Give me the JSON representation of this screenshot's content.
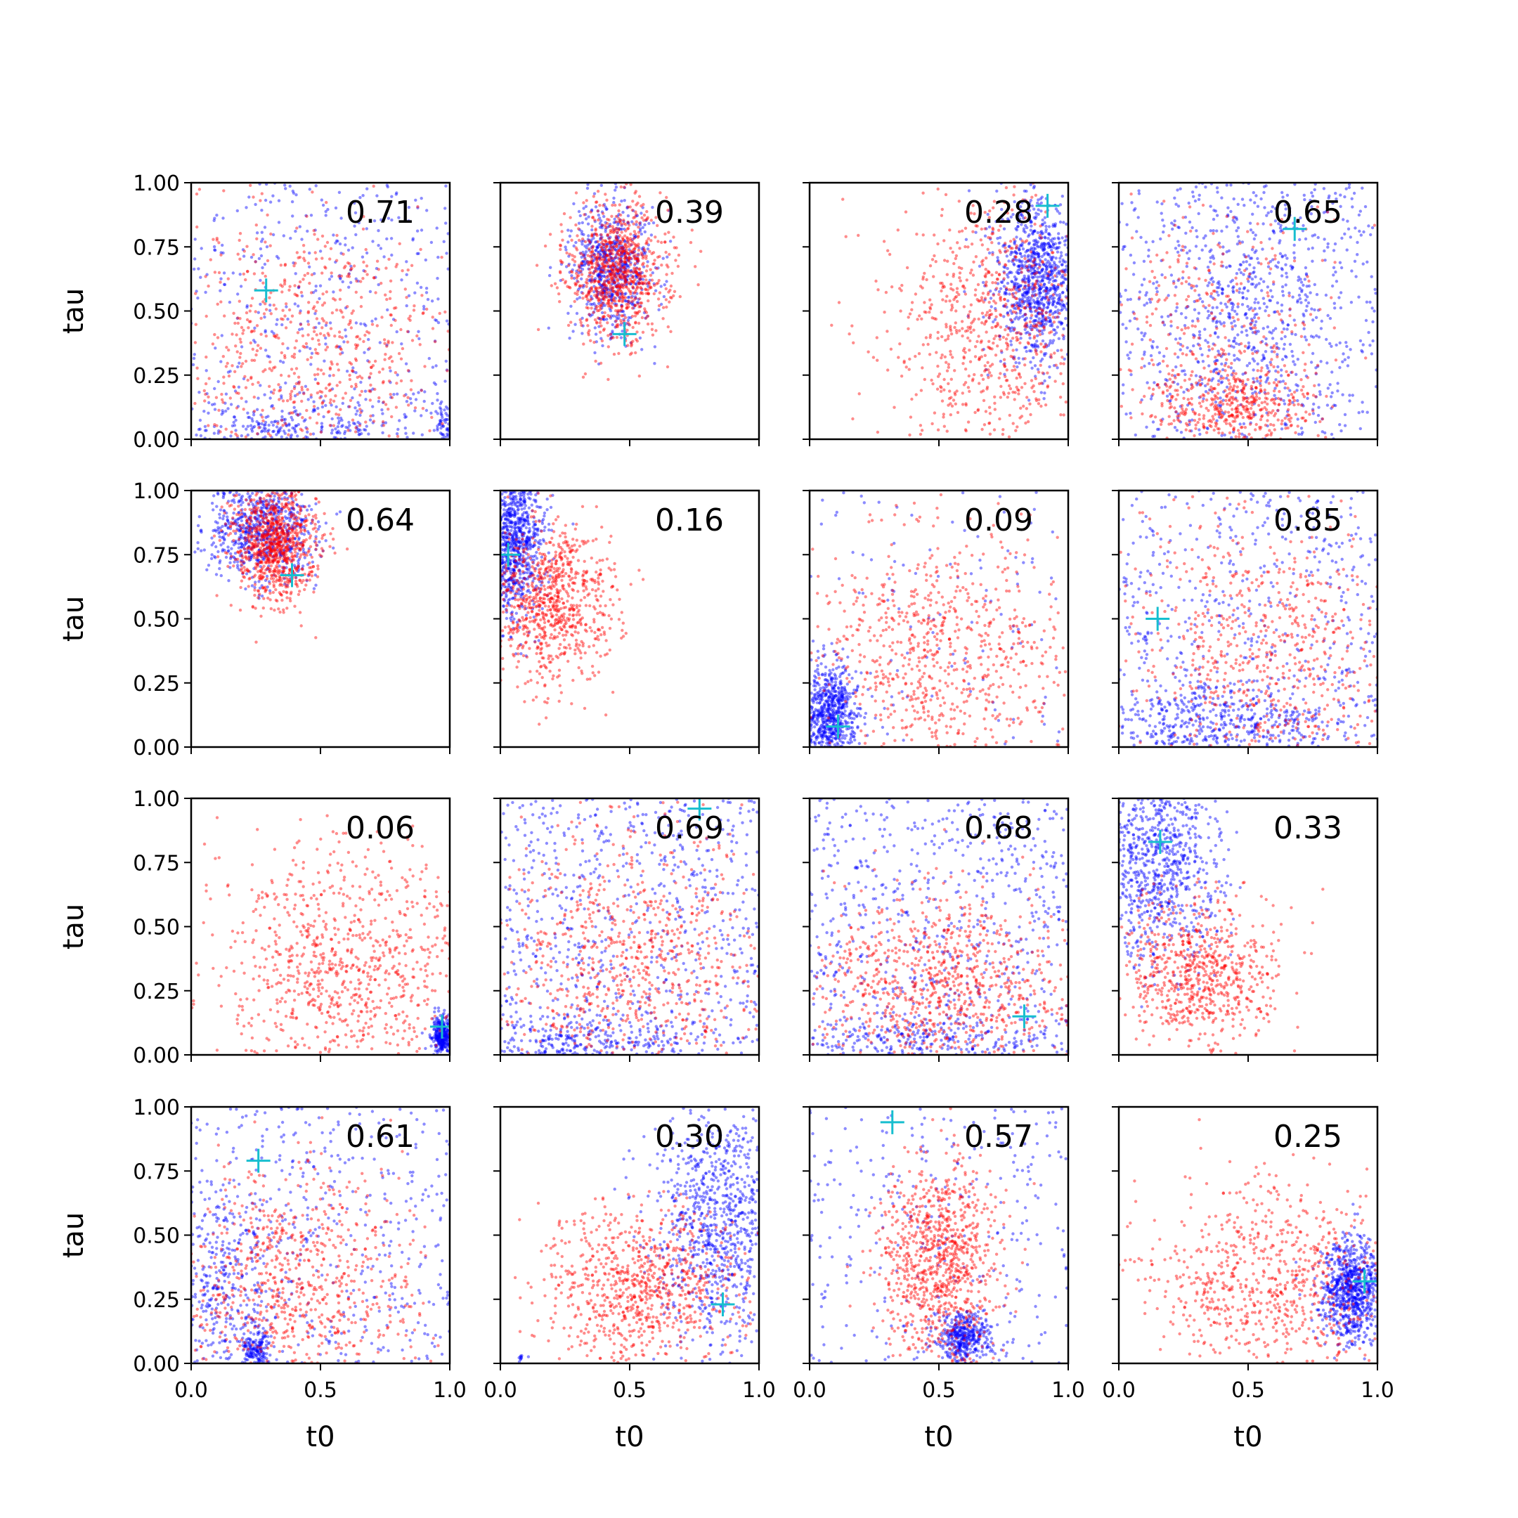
{
  "chart_data": {
    "type": "scatter",
    "layout": "4x4 grid of panels sharing axes",
    "xlabel": "t0",
    "ylabel": "tau",
    "xlim": [
      0,
      1
    ],
    "ylim": [
      0,
      1
    ],
    "xticks": [
      "0.0",
      "0.5",
      "1.0"
    ],
    "yticks": [
      "0.00",
      "0.25",
      "0.50",
      "0.75",
      "1.00"
    ],
    "colors": {
      "series_a": "#ff0000",
      "series_b": "#0000ff",
      "marker": "#17becf"
    },
    "panels": [
      {
        "value": "0.71",
        "marker": [
          0.29,
          0.58
        ],
        "blue": [
          {
            "x": [
              0,
              1
            ],
            "y": [
              0,
              1
            ],
            "n": 420
          },
          {
            "cx": 0.35,
            "cy": 0.05,
            "sx": 0.25,
            "sy": 0.05,
            "n": 200
          },
          {
            "cx": 0.98,
            "cy": 0.05,
            "sx": 0.02,
            "sy": 0.05,
            "n": 40
          }
        ],
        "red": [
          {
            "cx": 0.45,
            "cy": 0.35,
            "sx": 0.3,
            "sy": 0.28,
            "n": 600
          }
        ]
      },
      {
        "value": "0.39",
        "marker": [
          0.48,
          0.41
        ],
        "blue": [
          {
            "cx": 0.43,
            "cy": 0.67,
            "sx": 0.08,
            "sy": 0.13,
            "n": 700
          }
        ],
        "red": [
          {
            "cx": 0.45,
            "cy": 0.65,
            "sx": 0.1,
            "sy": 0.13,
            "n": 900
          }
        ]
      },
      {
        "value": "0.28",
        "marker": [
          0.92,
          0.91
        ],
        "blue": [
          {
            "cx": 0.88,
            "cy": 0.62,
            "sx": 0.08,
            "sy": 0.15,
            "n": 900
          }
        ],
        "red": [
          {
            "cx": 0.7,
            "cy": 0.45,
            "sx": 0.2,
            "sy": 0.25,
            "n": 700
          }
        ]
      },
      {
        "value": "0.65",
        "marker": [
          0.68,
          0.82
        ],
        "blue": [
          {
            "x": [
              0,
              1
            ],
            "y": [
              0,
              1
            ],
            "n": 550
          },
          {
            "cx": 0.5,
            "cy": 0.5,
            "sx": 0.15,
            "sy": 0.25,
            "n": 400
          }
        ],
        "red": [
          {
            "cx": 0.45,
            "cy": 0.12,
            "sx": 0.15,
            "sy": 0.08,
            "n": 400
          },
          {
            "cx": 0.4,
            "cy": 0.45,
            "sx": 0.25,
            "sy": 0.25,
            "n": 300
          }
        ]
      },
      {
        "value": "0.64",
        "marker": [
          0.39,
          0.67
        ],
        "blue": [
          {
            "cx": 0.28,
            "cy": 0.85,
            "sx": 0.1,
            "sy": 0.1,
            "n": 700
          }
        ],
        "red": [
          {
            "cx": 0.33,
            "cy": 0.8,
            "sx": 0.08,
            "sy": 0.12,
            "n": 900
          }
        ]
      },
      {
        "value": "0.16",
        "marker": [
          0.03,
          0.75
        ],
        "blue": [
          {
            "cx": 0.05,
            "cy": 0.8,
            "sx": 0.06,
            "sy": 0.15,
            "n": 700
          }
        ],
        "red": [
          {
            "cx": 0.2,
            "cy": 0.55,
            "sx": 0.12,
            "sy": 0.15,
            "n": 800
          }
        ]
      },
      {
        "value": "0.09",
        "marker": [
          0.11,
          0.08
        ],
        "blue": [
          {
            "cx": 0.08,
            "cy": 0.12,
            "sx": 0.05,
            "sy": 0.1,
            "n": 600
          },
          {
            "x": [
              0,
              1
            ],
            "y": [
              0,
              1
            ],
            "n": 120
          }
        ],
        "red": [
          {
            "cx": 0.5,
            "cy": 0.35,
            "sx": 0.25,
            "sy": 0.25,
            "n": 700
          }
        ]
      },
      {
        "value": "0.85",
        "marker": [
          0.15,
          0.5
        ],
        "blue": [
          {
            "x": [
              0,
              1
            ],
            "y": [
              0,
              1
            ],
            "n": 500
          },
          {
            "cx": 0.4,
            "cy": 0.1,
            "sx": 0.25,
            "sy": 0.08,
            "n": 400
          }
        ],
        "red": [
          {
            "cx": 0.55,
            "cy": 0.35,
            "sx": 0.3,
            "sy": 0.3,
            "n": 600
          }
        ]
      },
      {
        "value": "0.06",
        "marker": [
          0.97,
          0.11
        ],
        "blue": [
          {
            "cx": 0.97,
            "cy": 0.08,
            "sx": 0.02,
            "sy": 0.04,
            "n": 300
          }
        ],
        "red": [
          {
            "cx": 0.6,
            "cy": 0.35,
            "sx": 0.25,
            "sy": 0.25,
            "n": 800
          }
        ]
      },
      {
        "value": "0.69",
        "marker": [
          0.77,
          0.96
        ],
        "blue": [
          {
            "x": [
              0,
              1
            ],
            "y": [
              0,
              1
            ],
            "n": 700
          },
          {
            "cx": 0.3,
            "cy": 0.05,
            "sx": 0.25,
            "sy": 0.05,
            "n": 200
          }
        ],
        "red": [
          {
            "cx": 0.5,
            "cy": 0.35,
            "sx": 0.28,
            "sy": 0.28,
            "n": 700
          }
        ]
      },
      {
        "value": "0.68",
        "marker": [
          0.83,
          0.15
        ],
        "blue": [
          {
            "x": [
              0,
              1
            ],
            "y": [
              0,
              1
            ],
            "n": 650
          },
          {
            "cx": 0.5,
            "cy": 0.05,
            "sx": 0.3,
            "sy": 0.05,
            "n": 200
          }
        ],
        "red": [
          {
            "cx": 0.5,
            "cy": 0.25,
            "sx": 0.25,
            "sy": 0.2,
            "n": 800
          }
        ]
      },
      {
        "value": "0.33",
        "marker": [
          0.16,
          0.83
        ],
        "blue": [
          {
            "cx": 0.15,
            "cy": 0.75,
            "sx": 0.12,
            "sy": 0.2,
            "n": 700
          }
        ],
        "red": [
          {
            "cx": 0.3,
            "cy": 0.3,
            "sx": 0.15,
            "sy": 0.15,
            "n": 700
          }
        ]
      },
      {
        "value": "0.61",
        "marker": [
          0.26,
          0.79
        ],
        "blue": [
          {
            "x": [
              0,
              1
            ],
            "y": [
              0,
              1
            ],
            "n": 450
          },
          {
            "cx": 0.25,
            "cy": 0.05,
            "sx": 0.03,
            "sy": 0.04,
            "n": 150
          },
          {
            "cx": 0.1,
            "cy": 0.3,
            "sx": 0.1,
            "sy": 0.2,
            "n": 250
          }
        ],
        "red": [
          {
            "cx": 0.4,
            "cy": 0.3,
            "sx": 0.25,
            "sy": 0.25,
            "n": 700
          }
        ]
      },
      {
        "value": "0.30",
        "marker": [
          0.86,
          0.23
        ],
        "blue": [
          {
            "cx": 0.85,
            "cy": 0.55,
            "sx": 0.12,
            "sy": 0.25,
            "n": 800
          },
          {
            "cx": 0.08,
            "cy": 0.02,
            "sx": 0.01,
            "sy": 0.01,
            "n": 10
          }
        ],
        "red": [
          {
            "cx": 0.55,
            "cy": 0.3,
            "sx": 0.2,
            "sy": 0.15,
            "n": 800
          }
        ]
      },
      {
        "value": "0.57",
        "marker": [
          0.32,
          0.94
        ],
        "blue": [
          {
            "cx": 0.6,
            "cy": 0.1,
            "sx": 0.05,
            "sy": 0.05,
            "n": 400
          },
          {
            "x": [
              0,
              1
            ],
            "y": [
              0,
              1
            ],
            "n": 300
          }
        ],
        "red": [
          {
            "cx": 0.5,
            "cy": 0.4,
            "sx": 0.12,
            "sy": 0.2,
            "n": 900
          }
        ]
      },
      {
        "value": "0.25",
        "marker": [
          0.95,
          0.32
        ],
        "blue": [
          {
            "cx": 0.9,
            "cy": 0.28,
            "sx": 0.06,
            "sy": 0.1,
            "n": 800
          }
        ],
        "red": [
          {
            "cx": 0.6,
            "cy": 0.3,
            "sx": 0.25,
            "sy": 0.2,
            "n": 700
          }
        ]
      }
    ]
  }
}
